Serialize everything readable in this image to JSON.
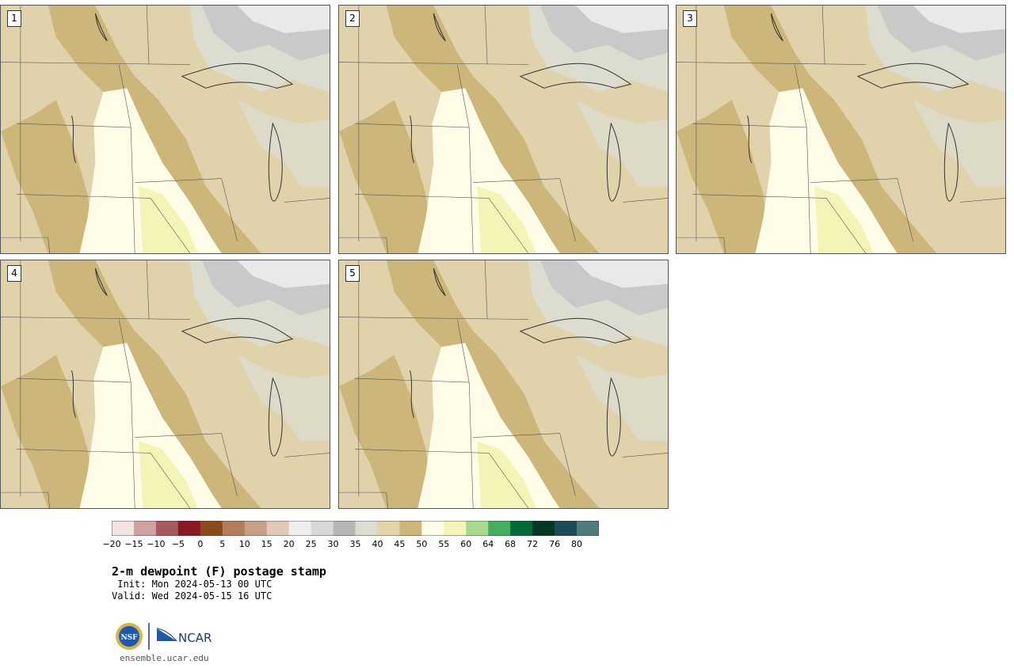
{
  "panels": [
    {
      "label": "1"
    },
    {
      "label": "2"
    },
    {
      "label": "3"
    },
    {
      "label": "4"
    },
    {
      "label": "5"
    }
  ],
  "colorbar": {
    "colors": [
      "#f3e4e4",
      "#cfa1a3",
      "#a65a5e",
      "#8a1a22",
      "#8b4a1c",
      "#b27d5a",
      "#c7a089",
      "#e2c8b7",
      "#eeeeee",
      "#d8d8d8",
      "#b6b6b6",
      "#dcdcd0",
      "#e3d4aa",
      "#cdb67a",
      "#fffde8",
      "#f3f5b6",
      "#a8d88c",
      "#45ad5e",
      "#036b3a",
      "#043824",
      "#1a4b56",
      "#517a7a"
    ],
    "tick_labels": [
      "−20",
      "−15",
      "−10",
      "−5",
      "0",
      "5",
      "10",
      "15",
      "20",
      "25",
      "30",
      "35",
      "40",
      "45",
      "50",
      "55",
      "60",
      "64",
      "68",
      "72",
      "76",
      "80"
    ]
  },
  "title": "2-m dewpoint (F) postage stamp",
  "init": " Init: Mon 2024-05-13 00 UTC",
  "valid": "Valid: Wed 2024-05-15 16 UTC",
  "logos": {
    "nsf": "NSF",
    "ncar": "NCAR"
  },
  "url": "ensemble.ucar.edu"
}
